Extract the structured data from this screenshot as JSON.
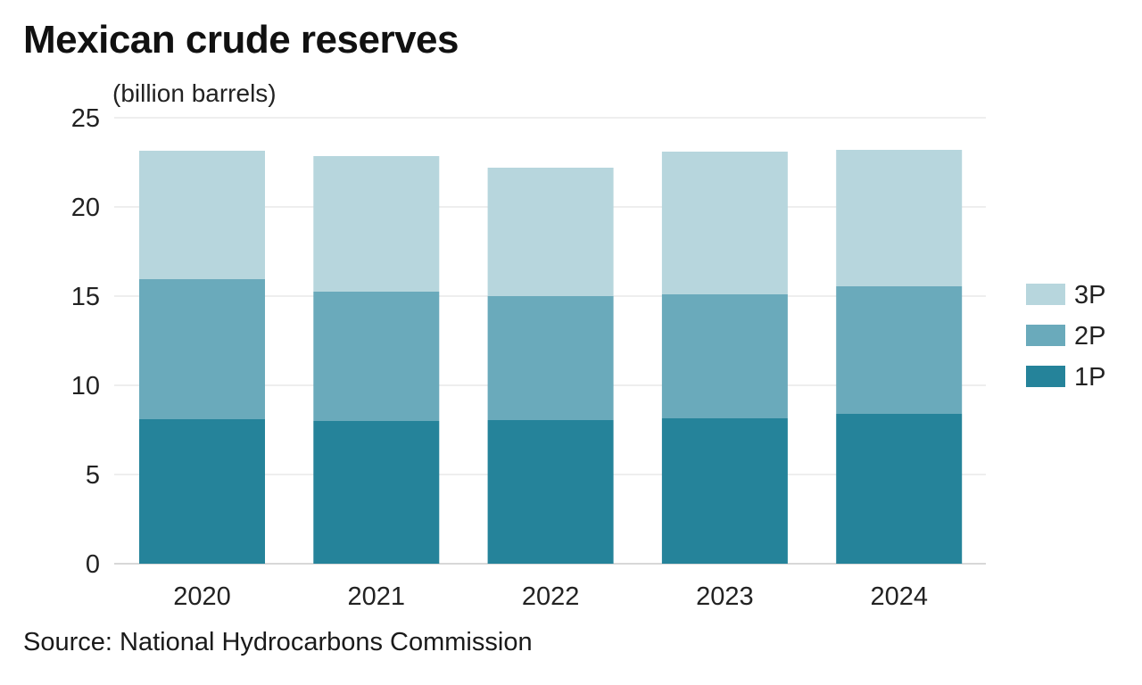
{
  "chart_data": {
    "type": "bar",
    "stacked": true,
    "title": "Mexican crude reserves",
    "unit_label": "(billion barrels)",
    "categories": [
      "2020",
      "2021",
      "2022",
      "2023",
      "2024"
    ],
    "series": [
      {
        "name": "1P",
        "color": "#25839a",
        "values": [
          8.1,
          8.0,
          8.05,
          8.15,
          8.4
        ]
      },
      {
        "name": "2P",
        "color": "#6aaabb",
        "values": [
          7.85,
          7.25,
          6.95,
          6.95,
          7.15
        ]
      },
      {
        "name": "3P",
        "color": "#b7d6dd",
        "values": [
          7.2,
          7.6,
          7.2,
          8.0,
          7.65
        ]
      }
    ],
    "ylim": [
      0,
      25
    ],
    "yticks": [
      0,
      5,
      10,
      15,
      20,
      25
    ],
    "grid": true,
    "legend_position": "right",
    "legend_order": [
      "3P",
      "2P",
      "1P"
    ],
    "source": "Source: National Hydrocarbons Commission"
  }
}
